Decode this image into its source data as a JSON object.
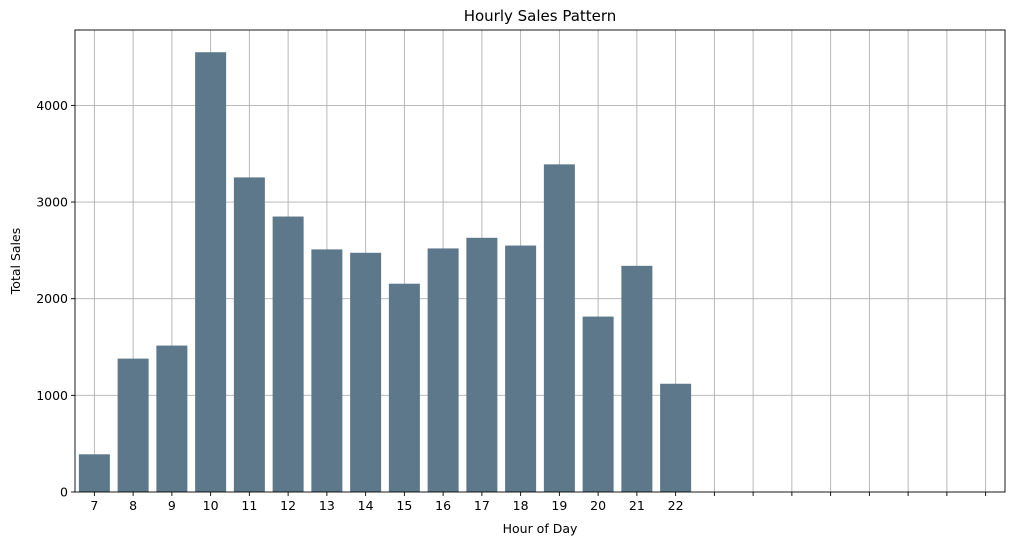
{
  "chart_data": {
    "type": "bar",
    "title": "Hourly Sales Pattern",
    "xlabel": "Hour of Day",
    "ylabel": "Total Sales",
    "categories": [
      "7",
      "8",
      "9",
      "10",
      "11",
      "12",
      "13",
      "14",
      "15",
      "16",
      "17",
      "18",
      "19",
      "20",
      "21",
      "22"
    ],
    "values": [
      390,
      1380,
      1515,
      4550,
      3255,
      2850,
      2510,
      2475,
      2155,
      2520,
      2630,
      2550,
      3390,
      1815,
      2340,
      1120
    ],
    "empty_slots_after": 8,
    "ylim": [
      0,
      4780
    ],
    "yticks": [
      0,
      1000,
      2000,
      3000,
      4000
    ],
    "ytick_labels": [
      "0",
      "1000",
      "2000",
      "3000",
      "4000"
    ],
    "grid": true,
    "bar_color": "#5c788a",
    "grid_color": "#b0b0b0"
  }
}
